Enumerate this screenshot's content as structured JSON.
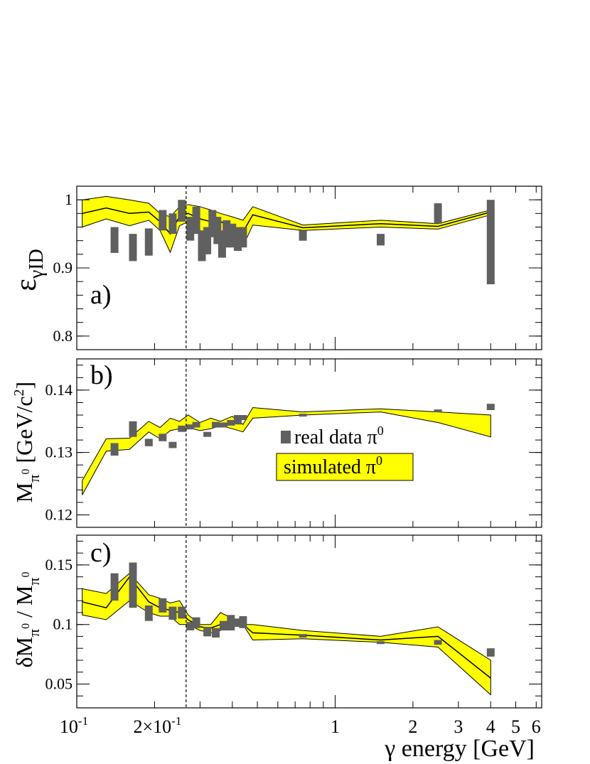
{
  "chart_data": [
    {
      "panel_label": "a)",
      "type": "area",
      "ylabel": "εγID",
      "ylim": [
        0.78,
        1.02
      ],
      "yticks": [
        {
          "v": 0.8,
          "label": "0.8"
        },
        {
          "v": 0.9,
          "label": "0.9"
        },
        {
          "v": 1.0,
          "label": "1"
        }
      ],
      "log_x": true,
      "vline_x": 0.265,
      "band": {
        "x": [
          0.105,
          0.13,
          0.16,
          0.19,
          0.21,
          0.23,
          0.25,
          0.27,
          0.3,
          0.33,
          0.36,
          0.4,
          0.44,
          0.48,
          0.75,
          1.5,
          2.5,
          4.0
        ],
        "upper": [
          1.0,
          1.005,
          1.0,
          0.995,
          0.98,
          0.975,
          0.99,
          0.993,
          0.99,
          0.985,
          0.98,
          0.975,
          0.97,
          0.99,
          0.963,
          0.97,
          0.965,
          0.985
        ],
        "lower": [
          0.96,
          0.972,
          0.962,
          0.97,
          0.955,
          0.923,
          0.962,
          0.968,
          0.955,
          0.95,
          0.955,
          0.94,
          0.932,
          0.963,
          0.955,
          0.96,
          0.957,
          0.978
        ]
      },
      "mc_line": {
        "x": [
          0.105,
          0.13,
          0.16,
          0.19,
          0.21,
          0.23,
          0.25,
          0.27,
          0.3,
          0.33,
          0.36,
          0.4,
          0.44,
          0.48,
          0.75,
          1.5,
          2.5,
          4.0
        ],
        "y": [
          0.98,
          0.988,
          0.98,
          0.982,
          0.968,
          0.95,
          0.976,
          0.98,
          0.972,
          0.968,
          0.968,
          0.96,
          0.953,
          0.978,
          0.959,
          0.965,
          0.961,
          0.982
        ]
      },
      "data": [
        {
          "x": 0.14,
          "lo": 0.922,
          "hi": 0.96
        },
        {
          "x": 0.165,
          "lo": 0.91,
          "hi": 0.95
        },
        {
          "x": 0.19,
          "lo": 0.918,
          "hi": 0.958
        },
        {
          "x": 0.215,
          "lo": 0.955,
          "hi": 0.985
        },
        {
          "x": 0.235,
          "lo": 0.95,
          "hi": 0.98
        },
        {
          "x": 0.255,
          "lo": 0.968,
          "hi": 1.0
        },
        {
          "x": 0.275,
          "lo": 0.94,
          "hi": 0.975
        },
        {
          "x": 0.29,
          "lo": 0.95,
          "hi": 0.99
        },
        {
          "x": 0.305,
          "lo": 0.91,
          "hi": 0.955
        },
        {
          "x": 0.32,
          "lo": 0.92,
          "hi": 0.96
        },
        {
          "x": 0.335,
          "lo": 0.945,
          "hi": 0.985
        },
        {
          "x": 0.35,
          "lo": 0.935,
          "hi": 0.975
        },
        {
          "x": 0.365,
          "lo": 0.915,
          "hi": 0.955
        },
        {
          "x": 0.38,
          "lo": 0.93,
          "hi": 0.97
        },
        {
          "x": 0.4,
          "lo": 0.93,
          "hi": 0.965
        },
        {
          "x": 0.42,
          "lo": 0.925,
          "hi": 0.96
        },
        {
          "x": 0.44,
          "lo": 0.93,
          "hi": 0.96
        },
        {
          "x": 0.75,
          "lo": 0.94,
          "hi": 0.955
        },
        {
          "x": 1.5,
          "lo": 0.933,
          "hi": 0.95
        },
        {
          "x": 2.5,
          "lo": 0.965,
          "hi": 0.995
        },
        {
          "x": 4.0,
          "lo": 0.876,
          "hi": 1.0
        }
      ]
    },
    {
      "panel_label": "b)",
      "type": "area",
      "ylabel": "Mπ0  [GeV/c2]",
      "ylim": [
        0.118,
        0.145
      ],
      "yticks": [
        {
          "v": 0.12,
          "label": "0.12"
        },
        {
          "v": 0.13,
          "label": "0.13"
        },
        {
          "v": 0.14,
          "label": "0.14"
        }
      ],
      "log_x": true,
      "vline_x": 0.265,
      "band": {
        "x": [
          0.105,
          0.13,
          0.16,
          0.19,
          0.21,
          0.23,
          0.25,
          0.27,
          0.3,
          0.33,
          0.36,
          0.4,
          0.44,
          0.48,
          0.75,
          1.5,
          2.5,
          4.0
        ],
        "upper": [
          0.1255,
          0.1322,
          0.1323,
          0.135,
          0.134,
          0.1355,
          0.135,
          0.136,
          0.1348,
          0.1355,
          0.135,
          0.1358,
          0.1345,
          0.1372,
          0.1365,
          0.137,
          0.1365,
          0.136
        ],
        "lower": [
          0.1232,
          0.1302,
          0.1305,
          0.1333,
          0.1322,
          0.1335,
          0.1338,
          0.134,
          0.1335,
          0.1338,
          0.1343,
          0.1338,
          0.1333,
          0.1355,
          0.136,
          0.1365,
          0.1348,
          0.1325
        ]
      },
      "data": [
        {
          "x": 0.14,
          "lo": 0.1295,
          "hi": 0.1315
        },
        {
          "x": 0.165,
          "lo": 0.1325,
          "hi": 0.135
        },
        {
          "x": 0.19,
          "lo": 0.131,
          "hi": 0.1322
        },
        {
          "x": 0.215,
          "lo": 0.1318,
          "hi": 0.133
        },
        {
          "x": 0.235,
          "lo": 0.1307,
          "hi": 0.1317
        },
        {
          "x": 0.255,
          "lo": 0.1333,
          "hi": 0.1343
        },
        {
          "x": 0.275,
          "lo": 0.1337,
          "hi": 0.1345
        },
        {
          "x": 0.29,
          "lo": 0.134,
          "hi": 0.1349
        },
        {
          "x": 0.32,
          "lo": 0.1325,
          "hi": 0.1333
        },
        {
          "x": 0.345,
          "lo": 0.134,
          "hi": 0.1349
        },
        {
          "x": 0.37,
          "lo": 0.134,
          "hi": 0.1348
        },
        {
          "x": 0.395,
          "lo": 0.1343,
          "hi": 0.1352
        },
        {
          "x": 0.42,
          "lo": 0.1345,
          "hi": 0.136
        },
        {
          "x": 0.44,
          "lo": 0.1352,
          "hi": 0.136
        },
        {
          "x": 0.75,
          "lo": 0.1359,
          "hi": 0.1362
        },
        {
          "x": 2.5,
          "lo": 0.1366,
          "hi": 0.1369
        },
        {
          "x": 4.0,
          "lo": 0.1368,
          "hi": 0.1378
        }
      ],
      "legend": {
        "data_label": "real data π0",
        "sim_label": "simulated π0"
      }
    },
    {
      "panel_label": "c)",
      "type": "area",
      "ylabel": "δMπ0 / Mπ0",
      "ylim": [
        0.03,
        0.175
      ],
      "yticks": [
        {
          "v": 0.05,
          "label": "0.05"
        },
        {
          "v": 0.1,
          "label": "0.1"
        },
        {
          "v": 0.15,
          "label": "0.15"
        }
      ],
      "log_x": true,
      "vline_x": 0.265,
      "band": {
        "x": [
          0.105,
          0.13,
          0.16,
          0.19,
          0.21,
          0.23,
          0.25,
          0.27,
          0.3,
          0.33,
          0.36,
          0.4,
          0.44,
          0.48,
          0.75,
          1.5,
          2.5,
          4.0
        ],
        "upper": [
          0.13,
          0.126,
          0.143,
          0.125,
          0.122,
          0.118,
          0.12,
          0.108,
          0.1,
          0.1,
          0.11,
          0.105,
          0.1,
          0.1,
          0.095,
          0.09,
          0.098,
          0.07
        ],
        "lower": [
          0.108,
          0.104,
          0.12,
          0.11,
          0.107,
          0.107,
          0.1,
          0.1,
          0.095,
          0.093,
          0.095,
          0.1,
          0.1,
          0.087,
          0.088,
          0.085,
          0.081,
          0.041
        ]
      },
      "mc_line": {
        "x": [
          0.105,
          0.13,
          0.16,
          0.19,
          0.21,
          0.23,
          0.25,
          0.27,
          0.3,
          0.33,
          0.36,
          0.4,
          0.44,
          0.48,
          0.75,
          1.5,
          2.5,
          4.0
        ],
        "y": [
          0.119,
          0.114,
          0.14,
          0.119,
          0.114,
          0.112,
          0.11,
          0.104,
          0.098,
          0.097,
          0.1,
          0.1,
          0.1,
          0.093,
          0.091,
          0.087,
          0.09,
          0.055
        ]
      },
      "data": [
        {
          "x": 0.14,
          "lo": 0.12,
          "hi": 0.143
        },
        {
          "x": 0.165,
          "lo": 0.114,
          "hi": 0.152
        },
        {
          "x": 0.19,
          "lo": 0.103,
          "hi": 0.116
        },
        {
          "x": 0.215,
          "lo": 0.11,
          "hi": 0.122
        },
        {
          "x": 0.235,
          "lo": 0.104,
          "hi": 0.115
        },
        {
          "x": 0.255,
          "lo": 0.105,
          "hi": 0.115
        },
        {
          "x": 0.275,
          "lo": 0.095,
          "hi": 0.102
        },
        {
          "x": 0.29,
          "lo": 0.097,
          "hi": 0.106
        },
        {
          "x": 0.32,
          "lo": 0.09,
          "hi": 0.098
        },
        {
          "x": 0.345,
          "lo": 0.089,
          "hi": 0.097
        },
        {
          "x": 0.37,
          "lo": 0.095,
          "hi": 0.103
        },
        {
          "x": 0.395,
          "lo": 0.095,
          "hi": 0.108
        },
        {
          "x": 0.42,
          "lo": 0.098,
          "hi": 0.105
        },
        {
          "x": 0.44,
          "lo": 0.097,
          "hi": 0.107
        },
        {
          "x": 0.75,
          "lo": 0.089,
          "hi": 0.092
        },
        {
          "x": 1.5,
          "lo": 0.084,
          "hi": 0.086
        },
        {
          "x": 2.5,
          "lo": 0.083,
          "hi": 0.087
        },
        {
          "x": 4.0,
          "lo": 0.073,
          "hi": 0.08
        }
      ]
    }
  ],
  "x_axis": {
    "label": "γ energy [GeV]",
    "xlim": [
      0.1,
      6.3
    ],
    "ticks": [
      {
        "v": 0.1,
        "label": "10-1"
      },
      {
        "v": 0.2,
        "label": "2×10-1"
      },
      {
        "v": 1,
        "label": "1"
      },
      {
        "v": 2,
        "label": "2"
      },
      {
        "v": 3,
        "label": "3"
      },
      {
        "v": 4,
        "label": "4"
      },
      {
        "v": 5,
        "label": "5"
      },
      {
        "v": 6,
        "label": "6"
      }
    ]
  },
  "colors": {
    "band": "#ffff00",
    "data": "#606060",
    "line": "#000000"
  }
}
